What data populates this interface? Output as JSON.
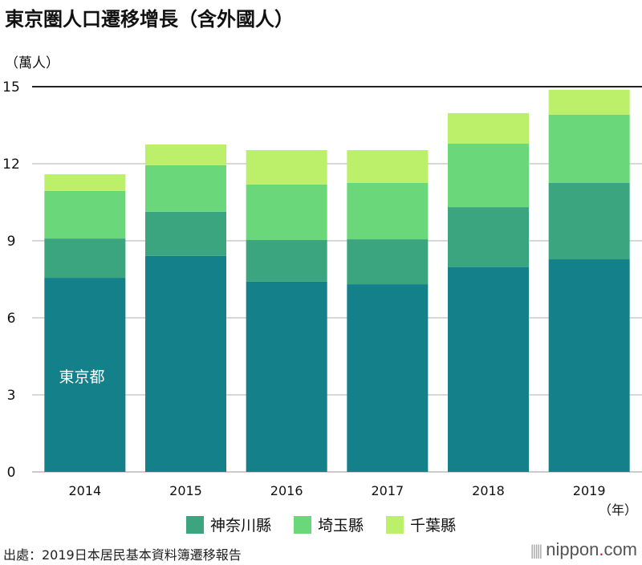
{
  "title": "東京圏人口遷移增長（含外國人）",
  "source": "出處：2019日本居民基本資料簿遷移報告",
  "logo": {
    "name": "nippon",
    "dot": ".",
    "suffix": "com"
  },
  "chart_data": {
    "type": "bar",
    "stacked": true,
    "title": "東京圏人口遷移增長（含外國人）",
    "ylabel": "（萬人）",
    "xlabel": "（年）",
    "ylim": [
      0,
      15
    ],
    "yticks": [
      "0",
      "3",
      "6",
      "9",
      "12",
      "15"
    ],
    "grid": true,
    "legend_placement": "bottom",
    "categories": [
      "2014",
      "2015",
      "2016",
      "2017",
      "2018",
      "2019"
    ],
    "series": [
      {
        "name": "東京都",
        "color": "#13808a",
        "values": [
          7.56,
          8.41,
          7.41,
          7.31,
          7.97,
          8.28
        ]
      },
      {
        "name": "神奈川縣",
        "color": "#3aa57e",
        "values": [
          1.53,
          1.72,
          1.62,
          1.75,
          2.34,
          2.97
        ]
      },
      {
        "name": "埼玉縣",
        "color": "#6ad87a",
        "values": [
          1.85,
          1.81,
          2.16,
          2.19,
          2.47,
          2.66
        ]
      },
      {
        "name": "千葉縣",
        "color": "#bcef6a",
        "values": [
          0.65,
          0.81,
          1.34,
          1.28,
          1.19,
          0.97
        ]
      }
    ],
    "annotation": "東京都"
  }
}
